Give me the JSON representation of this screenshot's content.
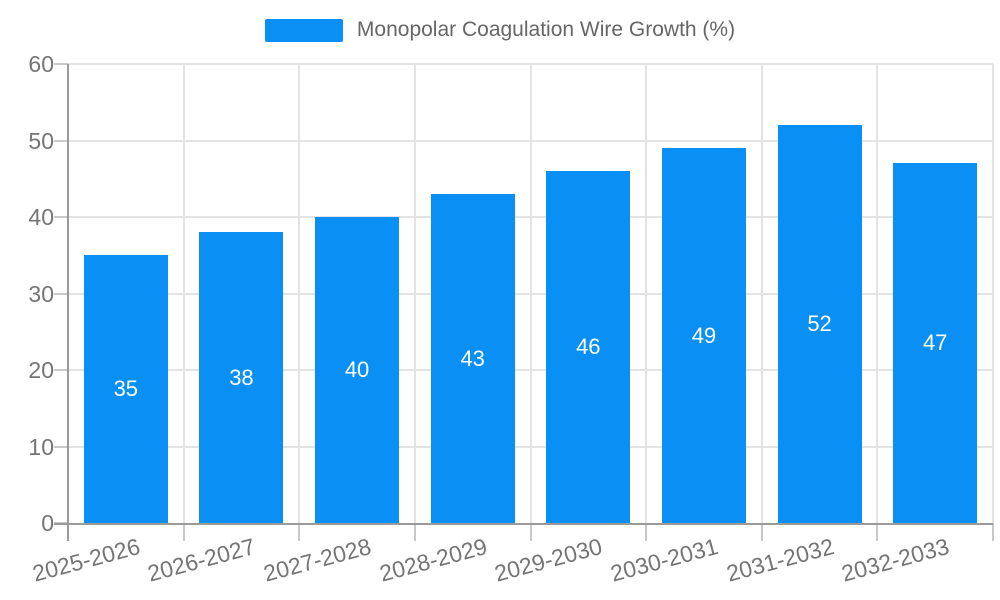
{
  "chart_data": {
    "type": "bar",
    "title": "",
    "legend": {
      "label": "Monopolar Coagulation Wire Growth (%)",
      "position": "top-center"
    },
    "categories": [
      "2025-2026",
      "2026-2027",
      "2027-2028",
      "2028-2029",
      "2029-2030",
      "2030-2031",
      "2031-2032",
      "2032-2033"
    ],
    "values": [
      35,
      38,
      40,
      43,
      46,
      49,
      52,
      47
    ],
    "value_labels_shown_inside_bars": true,
    "xlabel": "",
    "ylabel": "",
    "ylim": [
      0,
      60
    ],
    "yticks": [
      0,
      10,
      20,
      30,
      40,
      50,
      60
    ],
    "grid": "horizontal and vertical category boundaries",
    "x_tick_label_rotation_deg": -15,
    "colors": {
      "bar": "#0a8ff5",
      "grid_line": "#e3e3e3",
      "axis_line": "#9a9a9a",
      "tick_mark": "#c9c9c9",
      "tick_label": "#757575",
      "legend_text": "#666666",
      "value_label": "#ffffff",
      "background": "#ffffff"
    }
  }
}
